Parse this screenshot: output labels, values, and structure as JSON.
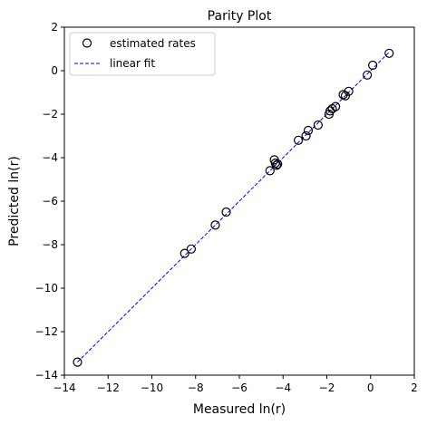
{
  "chart_data": {
    "type": "scatter",
    "title": "Parity Plot",
    "xlabel": "Measured ln(r)",
    "ylabel": "Predicted ln(r)",
    "xlim": [
      -14,
      2
    ],
    "ylim": [
      -14,
      2
    ],
    "x_ticks": [
      -14,
      -12,
      -10,
      -8,
      -6,
      -4,
      -2,
      0,
      2
    ],
    "y_ticks": [
      -14,
      -12,
      -10,
      -8,
      -6,
      -4,
      -2,
      0,
      2
    ],
    "x_tick_labels": [
      "−14",
      "−12",
      "−10",
      "−8",
      "−6",
      "−4",
      "−2",
      "0",
      "2"
    ],
    "y_tick_labels": [
      "−14",
      "−12",
      "−10",
      "−8",
      "−6",
      "−4",
      "−2",
      "0",
      "2"
    ],
    "grid": false,
    "legend_position": "top-left",
    "series": [
      {
        "name": "estimated rates",
        "kind": "scatter",
        "marker": "open-circle",
        "color": "#000000",
        "points": [
          [
            -13.4,
            -13.4
          ],
          [
            -8.5,
            -8.4
          ],
          [
            -8.2,
            -8.2
          ],
          [
            -7.1,
            -7.1
          ],
          [
            -6.6,
            -6.5
          ],
          [
            -4.6,
            -4.6
          ],
          [
            -4.4,
            -4.1
          ],
          [
            -4.35,
            -4.25
          ],
          [
            -4.3,
            -4.35
          ],
          [
            -4.25,
            -4.3
          ],
          [
            -3.3,
            -3.2
          ],
          [
            -2.95,
            -3.0
          ],
          [
            -2.85,
            -2.75
          ],
          [
            -2.4,
            -2.5
          ],
          [
            -1.9,
            -2.0
          ],
          [
            -1.85,
            -1.85
          ],
          [
            -1.75,
            -1.75
          ],
          [
            -1.6,
            -1.65
          ],
          [
            -1.25,
            -1.1
          ],
          [
            -1.15,
            -1.15
          ],
          [
            -1.0,
            -0.95
          ],
          [
            -0.15,
            -0.2
          ],
          [
            0.1,
            0.25
          ],
          [
            0.85,
            0.8
          ]
        ]
      },
      {
        "name": "linear fit",
        "kind": "line",
        "style": "dashed",
        "color": "#0000ff",
        "points": [
          [
            -13.4,
            -13.4
          ],
          [
            0.85,
            0.85
          ]
        ]
      }
    ]
  }
}
